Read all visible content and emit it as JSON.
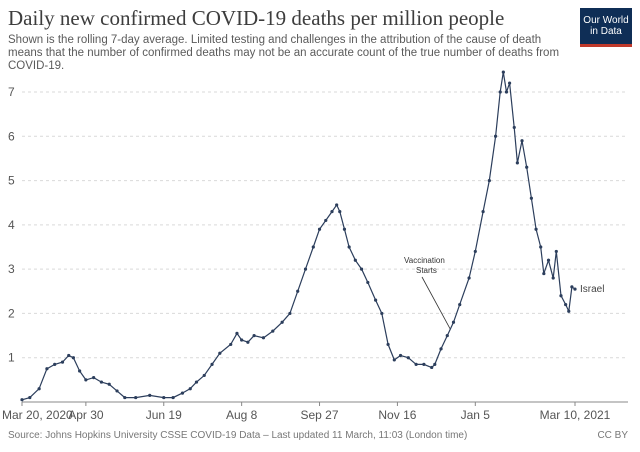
{
  "header": {
    "title": "Daily new confirmed COVID-19 deaths per million people",
    "subtitle": "Shown is the rolling 7-day average. Limited testing and challenges in the attribution of the cause of death means that the number of confirmed deaths may not be an accurate count of the true number of deaths from COVID-19."
  },
  "logo": {
    "line1": "Our World",
    "line2": "in Data",
    "bg_color": "#0f2e56",
    "accent_color": "#c0392b"
  },
  "footer": {
    "source": "Source: Johns Hopkins University CSSE COVID-19 Data – Last updated 11 March, 11:03 (London time)",
    "license": "CC BY"
  },
  "chart_data": {
    "type": "line",
    "title": "Daily new confirmed COVID-19 deaths per million people",
    "x_range": [
      "2020-03-20",
      "2021-03-10"
    ],
    "ylim": [
      0,
      7
    ],
    "y_ticks": [
      1,
      2,
      3,
      4,
      5,
      6,
      7
    ],
    "x_ticks": [
      "Mar 20, 2020",
      "Apr 30",
      "Jun 19",
      "Aug 8",
      "Sep 27",
      "Nov 16",
      "Jan 5",
      "Mar 10, 2021"
    ],
    "grid": "horizontal dashed",
    "line_color": "#2c3e5c",
    "series": [
      {
        "name": "Israel",
        "points": [
          [
            "2020-03-20",
            0.05
          ],
          [
            "2020-03-25",
            0.1
          ],
          [
            "2020-03-31",
            0.3
          ],
          [
            "2020-04-05",
            0.75
          ],
          [
            "2020-04-10",
            0.85
          ],
          [
            "2020-04-15",
            0.9
          ],
          [
            "2020-04-19",
            1.05
          ],
          [
            "2020-04-22",
            1.0
          ],
          [
            "2020-04-26",
            0.7
          ],
          [
            "2020-04-30",
            0.5
          ],
          [
            "2020-05-05",
            0.55
          ],
          [
            "2020-05-10",
            0.45
          ],
          [
            "2020-05-15",
            0.4
          ],
          [
            "2020-05-20",
            0.25
          ],
          [
            "2020-05-25",
            0.1
          ],
          [
            "2020-06-01",
            0.1
          ],
          [
            "2020-06-10",
            0.15
          ],
          [
            "2020-06-19",
            0.1
          ],
          [
            "2020-06-25",
            0.1
          ],
          [
            "2020-07-01",
            0.2
          ],
          [
            "2020-07-06",
            0.3
          ],
          [
            "2020-07-10",
            0.45
          ],
          [
            "2020-07-15",
            0.6
          ],
          [
            "2020-07-20",
            0.85
          ],
          [
            "2020-07-25",
            1.1
          ],
          [
            "2020-08-01",
            1.3
          ],
          [
            "2020-08-05",
            1.55
          ],
          [
            "2020-08-08",
            1.4
          ],
          [
            "2020-08-12",
            1.35
          ],
          [
            "2020-08-16",
            1.5
          ],
          [
            "2020-08-22",
            1.45
          ],
          [
            "2020-08-28",
            1.6
          ],
          [
            "2020-09-03",
            1.8
          ],
          [
            "2020-09-08",
            2.0
          ],
          [
            "2020-09-13",
            2.5
          ],
          [
            "2020-09-18",
            3.0
          ],
          [
            "2020-09-23",
            3.5
          ],
          [
            "2020-09-27",
            3.9
          ],
          [
            "2020-10-01",
            4.1
          ],
          [
            "2020-10-05",
            4.3
          ],
          [
            "2020-10-08",
            4.45
          ],
          [
            "2020-10-10",
            4.3
          ],
          [
            "2020-10-13",
            3.9
          ],
          [
            "2020-10-16",
            3.5
          ],
          [
            "2020-10-20",
            3.2
          ],
          [
            "2020-10-24",
            3.0
          ],
          [
            "2020-10-28",
            2.7
          ],
          [
            "2020-11-02",
            2.3
          ],
          [
            "2020-11-06",
            2.0
          ],
          [
            "2020-11-10",
            1.3
          ],
          [
            "2020-11-14",
            0.95
          ],
          [
            "2020-11-18",
            1.05
          ],
          [
            "2020-11-23",
            1.0
          ],
          [
            "2020-11-28",
            0.85
          ],
          [
            "2020-12-03",
            0.85
          ],
          [
            "2020-12-08",
            0.78
          ],
          [
            "2020-12-10",
            0.85
          ],
          [
            "2020-12-14",
            1.2
          ],
          [
            "2020-12-18",
            1.5
          ],
          [
            "2020-12-22",
            1.8
          ],
          [
            "2020-12-26",
            2.2
          ],
          [
            "2021-01-01",
            2.8
          ],
          [
            "2021-01-05",
            3.4
          ],
          [
            "2021-01-10",
            4.3
          ],
          [
            "2021-01-14",
            5.0
          ],
          [
            "2021-01-18",
            6.0
          ],
          [
            "2021-01-21",
            7.0
          ],
          [
            "2021-01-23",
            7.45
          ],
          [
            "2021-01-25",
            7.0
          ],
          [
            "2021-01-27",
            7.2
          ],
          [
            "2021-01-30",
            6.2
          ],
          [
            "2021-02-01",
            5.4
          ],
          [
            "2021-02-04",
            5.9
          ],
          [
            "2021-02-07",
            5.3
          ],
          [
            "2021-02-10",
            4.6
          ],
          [
            "2021-02-13",
            3.9
          ],
          [
            "2021-02-16",
            3.5
          ],
          [
            "2021-02-18",
            2.9
          ],
          [
            "2021-02-21",
            3.2
          ],
          [
            "2021-02-24",
            2.8
          ],
          [
            "2021-02-26",
            3.4
          ],
          [
            "2021-03-01",
            2.4
          ],
          [
            "2021-03-04",
            2.2
          ],
          [
            "2021-03-06",
            2.05
          ],
          [
            "2021-03-08",
            2.6
          ],
          [
            "2021-03-10",
            2.55
          ]
        ]
      }
    ],
    "series_label": "Israel",
    "annotation": {
      "text_line1": "Vaccination",
      "text_line2": "Starts",
      "date": "2020-12-20",
      "value": 1.55
    }
  }
}
